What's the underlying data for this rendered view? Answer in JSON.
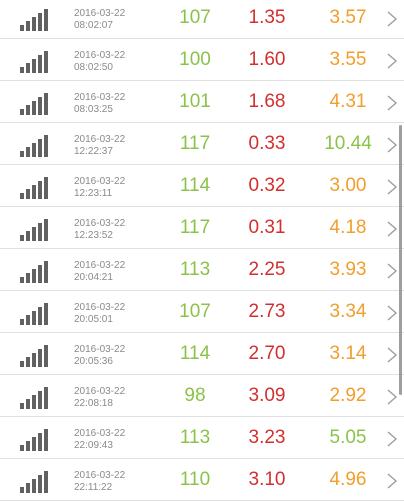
{
  "colors": {
    "speed": "#8bc34a",
    "ping": "#d32f2f",
    "jitter": "#f29e2c",
    "signal_icon": "#616161",
    "timestamp": "#8a8a8a",
    "divider": "#e0e0e0"
  },
  "icons": {
    "row_leading": "signal-bars-icon",
    "row_trailing": "chevron-right-icon"
  },
  "rows": [
    {
      "date": "2016-03-22",
      "time": "08:02:07",
      "v1": "107",
      "v2": "1.35",
      "v3": "3.57"
    },
    {
      "date": "2016-03-22",
      "time": "08:02:50",
      "v1": "100",
      "v2": "1.60",
      "v3": "3.55"
    },
    {
      "date": "2016-03-22",
      "time": "08:03:25",
      "v1": "101",
      "v2": "1.68",
      "v3": "4.31"
    },
    {
      "date": "2016-03-22",
      "time": "12:22:37",
      "v1": "117",
      "v2": "0.33",
      "v3": "10.44",
      "v3_color": "#8bc34a"
    },
    {
      "date": "2016-03-22",
      "time": "12:23:11",
      "v1": "114",
      "v2": "0.32",
      "v3": "3.00"
    },
    {
      "date": "2016-03-22",
      "time": "12:23:52",
      "v1": "117",
      "v2": "0.31",
      "v3": "4.18"
    },
    {
      "date": "2016-03-22",
      "time": "20:04:21",
      "v1": "113",
      "v2": "2.25",
      "v3": "3.93"
    },
    {
      "date": "2016-03-22",
      "time": "20:05:01",
      "v1": "107",
      "v2": "2.73",
      "v3": "3.34"
    },
    {
      "date": "2016-03-22",
      "time": "20:05:36",
      "v1": "114",
      "v2": "2.70",
      "v3": "3.14"
    },
    {
      "date": "2016-03-22",
      "time": "22:08:18",
      "v1": "98",
      "v2": "3.09",
      "v3": "2.92"
    },
    {
      "date": "2016-03-22",
      "time": "22:09:43",
      "v1": "113",
      "v2": "3.23",
      "v3": "5.05",
      "v3_color": "#8bc34a"
    },
    {
      "date": "2016-03-22",
      "time": "22:11:22",
      "v1": "110",
      "v2": "3.10",
      "v3": "4.96"
    }
  ]
}
